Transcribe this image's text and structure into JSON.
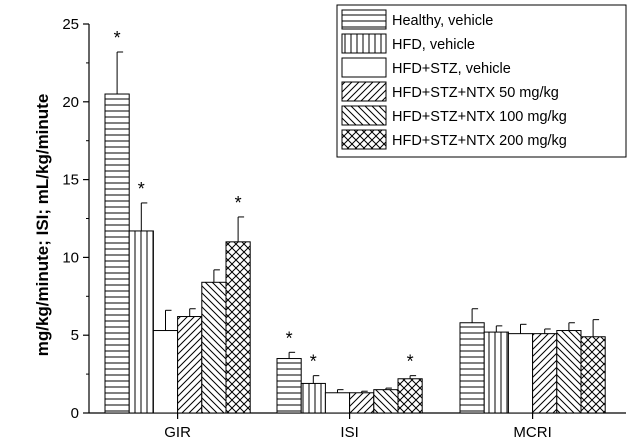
{
  "chart_data": {
    "type": "bar",
    "title": "",
    "xlabel": "",
    "ylabel": "mg/kg/minute; ISI; mL/kg/minute",
    "ylim": [
      0,
      25
    ],
    "yticks": [
      "0",
      "5",
      "10",
      "15",
      "20",
      "25"
    ],
    "categories": [
      "GIR",
      "ISI",
      "MCRI"
    ],
    "legend_position": "top-right",
    "series": [
      {
        "name": "Healthy, vehicle",
        "pattern": "horizontal-lines",
        "values": [
          20.5,
          3.5,
          5.8
        ],
        "errors": [
          2.7,
          0.4,
          0.9
        ],
        "significant": [
          true,
          true,
          false
        ]
      },
      {
        "name": "HFD, vehicle",
        "pattern": "vertical-lines",
        "values": [
          11.7,
          1.9,
          5.2
        ],
        "errors": [
          1.8,
          0.5,
          0.4
        ],
        "significant": [
          true,
          true,
          false
        ]
      },
      {
        "name": "HFD+STZ, vehicle",
        "pattern": "blank",
        "values": [
          5.3,
          1.3,
          5.1
        ],
        "errors": [
          1.3,
          0.2,
          0.6
        ],
        "significant": [
          false,
          false,
          false
        ]
      },
      {
        "name": "HFD+STZ+NTX 50 mg/kg",
        "pattern": "forward-diagonal",
        "values": [
          6.2,
          1.3,
          5.1
        ],
        "errors": [
          0.5,
          0.1,
          0.3
        ],
        "significant": [
          false,
          false,
          false
        ]
      },
      {
        "name": "HFD+STZ+NTX 100 mg/kg",
        "pattern": "backward-diagonal",
        "values": [
          8.4,
          1.5,
          5.3
        ],
        "errors": [
          0.8,
          0.1,
          0.5
        ],
        "significant": [
          false,
          false,
          false
        ]
      },
      {
        "name": "HFD+STZ+NTX 200 mg/kg",
        "pattern": "crosshatch",
        "values": [
          11.0,
          2.2,
          4.9
        ],
        "errors": [
          1.6,
          0.2,
          1.1
        ],
        "significant": [
          true,
          true,
          false
        ]
      }
    ],
    "significance_marker": "*"
  }
}
